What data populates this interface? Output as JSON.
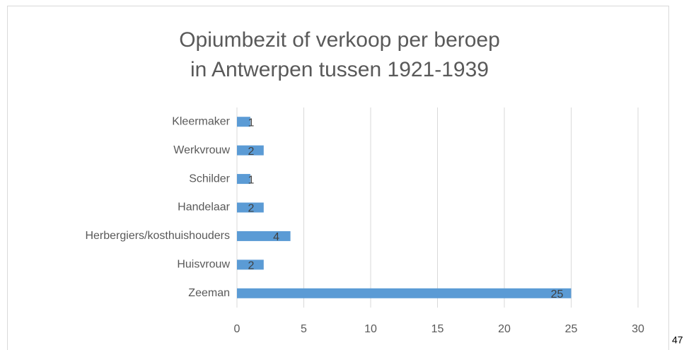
{
  "chart_data": {
    "type": "bar",
    "orientation": "horizontal",
    "title": [
      "Opiumbezit of verkoop per beroep",
      "in Antwerpen tussen 1921-1939"
    ],
    "categories": [
      "Kleermaker",
      "Werkvrouw",
      "Schilder",
      "Handelaar",
      "Herbergiers/kosthuishouders",
      "Huisvrouw",
      "Zeeman"
    ],
    "values": [
      1,
      2,
      1,
      2,
      4,
      2,
      25
    ],
    "color": "#5b9bd5",
    "xlim": [
      0,
      30
    ],
    "xticks": [
      0,
      5,
      10,
      15,
      20,
      25,
      30
    ],
    "grid": true
  },
  "page_number": "47"
}
